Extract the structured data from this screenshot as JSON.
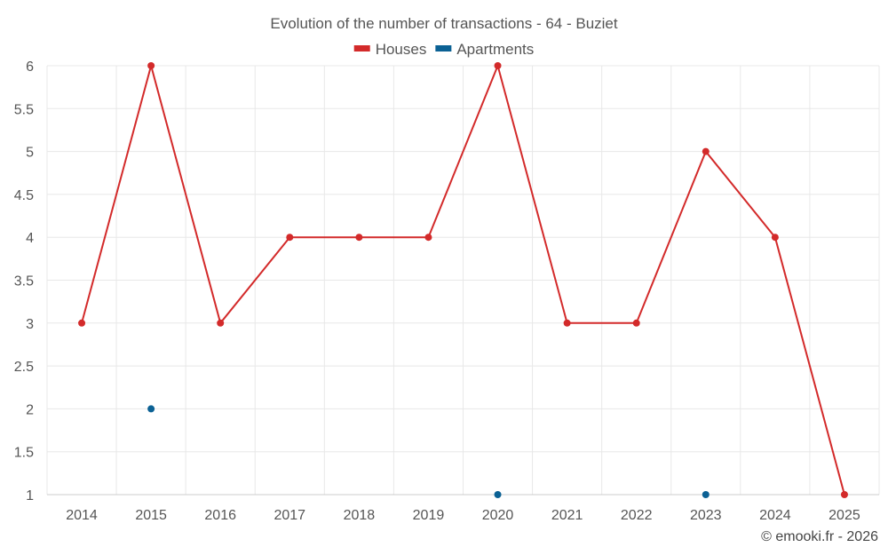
{
  "chart_data": {
    "type": "line",
    "title": "Evolution of the number of transactions - 64 - Buziet",
    "categories": [
      "2014",
      "2015",
      "2016",
      "2017",
      "2018",
      "2019",
      "2020",
      "2021",
      "2022",
      "2023",
      "2024",
      "2025"
    ],
    "series": [
      {
        "name": "Houses",
        "color": "#d32a2a",
        "values": [
          3,
          6,
          3,
          4,
          4,
          4,
          6,
          3,
          3,
          5,
          4,
          1
        ]
      },
      {
        "name": "Apartments",
        "color": "#0b6194",
        "values": [
          null,
          2,
          null,
          null,
          null,
          null,
          1,
          null,
          null,
          1,
          null,
          null
        ]
      }
    ],
    "ylim": [
      1,
      6
    ],
    "yticks": [
      "1",
      "1.5",
      "2",
      "2.5",
      "3",
      "3.5",
      "4",
      "4.5",
      "5",
      "5.5",
      "6"
    ],
    "xlabel": "",
    "ylabel": "",
    "grid": true,
    "legend_position": "top-center"
  },
  "credit": "© emooki.fr - 2026"
}
